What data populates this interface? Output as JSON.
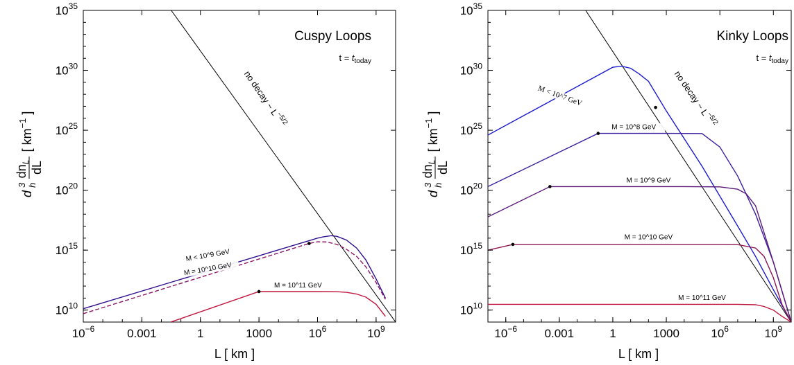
{
  "chart_data": [
    {
      "type": "line",
      "title": "Cuspy Loops",
      "subtitle": "t = t_today",
      "subtitle_parts": {
        "lhs": "t = ",
        "var": "t",
        "sub": "today"
      },
      "xlabel": "L  [ km ]",
      "ylabel": "d_h^3 dn_L/dL  [ km^-1 ]",
      "xscale": "log",
      "yscale": "log",
      "xlim": [
        1e-06,
        10000000000.0
      ],
      "ylim": [
        1000000000.0,
        1e+35
      ],
      "xticks": [
        {
          "v": 1e-06,
          "base": "10",
          "exp": "−6"
        },
        {
          "v": 0.001,
          "base": "0.001",
          "exp": ""
        },
        {
          "v": 1,
          "base": "1",
          "exp": ""
        },
        {
          "v": 1000,
          "base": "1000",
          "exp": ""
        },
        {
          "v": 1000000.0,
          "base": "10",
          "exp": "6"
        },
        {
          "v": 1000000000.0,
          "base": "10",
          "exp": "9"
        }
      ],
      "yticks": [
        {
          "v": 10000000000.0,
          "exp": "10"
        },
        {
          "v": 1000000000000000.0,
          "exp": "15"
        },
        {
          "v": 1e+20,
          "exp": "20"
        },
        {
          "v": 1e+25,
          "exp": "25"
        },
        {
          "v": 1e+30,
          "exp": "30"
        },
        {
          "v": 1e+35,
          "exp": "35"
        }
      ],
      "series": [
        {
          "name": "no decay ~ L^-5/2",
          "color": "#000000",
          "x": [
            0.032,
            10000000000.0
          ],
          "y": [
            1e+35,
            1000000000.0
          ]
        },
        {
          "name": "M < 10^9 GeV",
          "color": "#2f0f8f",
          "x": [
            1e-06,
            1000000.0,
            2000000.0,
            5000000.0,
            10000000.0,
            30000000.0,
            100000000.0,
            300000000.0,
            1000000000.0,
            3000000000.0
          ],
          "y": [
            13000000000.0,
            1e+16,
            1.3e+16,
            1.6e+16,
            1.4e+16,
            7000000000000000.0,
            1500000000000000.0,
            150000000000000.0,
            4000000000000.0,
            100000000000.0
          ]
        },
        {
          "name": "M = 10^10 GeV",
          "color": "#8a1465",
          "x": [
            1e-06,
            370000.0,
            1000000.0,
            3000000.0,
            10000000.0,
            30000000.0,
            100000000.0,
            300000000.0,
            1000000000.0,
            3000000000.0
          ],
          "y": [
            5000000000.0,
            3600000000000000.0,
            5000000000000000.0,
            4800000000000000.0,
            3000000000000000.0,
            1200000000000000.0,
            300000000000000.0,
            40000000000000.0,
            2000000000000.0,
            80000000000.0
          ]
        },
        {
          "name": "M = 10^11 GeV",
          "color": "#c0143c",
          "x": [
            0.03,
            1000.0,
            1000000.0,
            10000000.0,
            30000000.0,
            100000000.0,
            300000000.0,
            1000000000.0,
            3000000000.0
          ],
          "y": [
            1000000000.0,
            350000000000.0,
            350000000000.0,
            340000000000.0,
            300000000000.0,
            220000000000.0,
            120000000000.0,
            30000000000.0,
            3000000000.0
          ]
        }
      ],
      "points": [
        {
          "x": 370000.0,
          "y": 3600000000000000.0
        },
        {
          "x": 1000.0,
          "y": 350000000000.0
        }
      ],
      "labels": {
        "no_decay": "no decay ~ L",
        "no_decay_exp": "−5/2",
        "m9": "M < 10^9 GeV",
        "m10": "M = 10^10 GeV",
        "m11": "M = 10^11 GeV"
      }
    },
    {
      "type": "line",
      "title": "Kinky Loops",
      "subtitle": "t = t_today",
      "subtitle_parts": {
        "lhs": "t = ",
        "var": "t",
        "sub": "today"
      },
      "xlabel": "L  [ km ]",
      "ylabel": "d_h^3 dn_L/dL  [ km^-1 ]",
      "xscale": "log",
      "yscale": "log",
      "xlim": [
        1e-07,
        10000000000.0
      ],
      "ylim": [
        1000000000.0,
        1e+35
      ],
      "xticks": [
        {
          "v": 1e-06,
          "base": "10",
          "exp": "−6"
        },
        {
          "v": 0.001,
          "base": "0.001",
          "exp": ""
        },
        {
          "v": 1,
          "base": "1",
          "exp": ""
        },
        {
          "v": 1000,
          "base": "1000",
          "exp": ""
        },
        {
          "v": 1000000.0,
          "base": "10",
          "exp": "6"
        },
        {
          "v": 1000000000.0,
          "base": "10",
          "exp": "9"
        }
      ],
      "yticks": [
        {
          "v": 10000000000.0,
          "exp": "10"
        },
        {
          "v": 1000000000000000.0,
          "exp": "15"
        },
        {
          "v": 1e+20,
          "exp": "20"
        },
        {
          "v": 1e+25,
          "exp": "25"
        },
        {
          "v": 1e+30,
          "exp": "30"
        },
        {
          "v": 1e+35,
          "exp": "35"
        }
      ],
      "series": [
        {
          "name": "no decay ~ L^-5/2",
          "color": "#000000",
          "x": [
            0.03,
            10000000000.0
          ],
          "y": [
            1e+35,
            1000000000.0
          ]
        },
        {
          "name": "M < 10^7 GeV",
          "color": "#1a1ad0",
          "x": [
            1e-07,
            1,
            3,
            10,
            30,
            100,
            1000.0,
            100000.0,
            10000000.0,
            100000000.0,
            1000000000.0,
            10000000000.0
          ],
          "y": [
            4e+24,
            1.8e+30,
            2.2e+30,
            1.5e+30,
            5e+29,
            1.2e+29,
            4e+26,
            1e+22,
            1e+17,
            300000000000000.0,
            500000000000.0,
            1000000000.0
          ]
        },
        {
          "name": "M = 10^8 GeV",
          "color": "#3c1ea0",
          "x": [
            1e-07,
            0.15,
            1000.0,
            100000.0,
            1000000.0,
            10000000.0,
            100000000.0,
            1000000000.0,
            10000000000.0
          ],
          "y": [
            2e+20,
            5.5e+24,
            5.5e+24,
            5.3e+24,
            4e+23,
            1.5e+21,
            1e+18,
            100000000000000.0,
            1000000000.0
          ]
        },
        {
          "name": "M = 10^9 GeV",
          "color": "#5a1a7a",
          "x": [
            1e-07,
            0.0003,
            10000.0,
            1000000.0,
            10000000.0,
            30000000.0,
            100000000.0,
            1000000000.0,
            10000000000.0
          ],
          "y": [
            6e+17,
            2e+20,
            2e+20,
            1.9e+20,
            1.2e+20,
            5e+19,
            5e+18,
            100000000000000.0,
            1000000000.0
          ]
        },
        {
          "name": "M = 10^10 GeV",
          "color": "#8c1450",
          "x": [
            1e-07,
            2.5e-06,
            1000000.0,
            10000000.0,
            100000000.0,
            300000000.0,
            1000000000.0,
            3000000000.0,
            10000000000.0
          ],
          "y": [
            1000000000000000.0,
            3000000000000000.0,
            3000000000000000.0,
            2900000000000000.0,
            1500000000000000.0,
            300000000000000.0,
            5000000000000.0,
            30000000000.0,
            1000000000.0
          ]
        },
        {
          "name": "M = 10^11 GeV",
          "color": "#c0143c",
          "x": [
            1e-07,
            10000000.0,
            100000000.0,
            300000000.0,
            1000000000.0,
            3000000000.0,
            10000000000.0
          ],
          "y": [
            30000000000.0,
            30000000000.0,
            28000000000.0,
            20000000000.0,
            10000000000.0,
            3000000000.0,
            1000000000.0
          ]
        }
      ],
      "points": [
        {
          "x": 0.15,
          "y": 5.5e+24
        },
        {
          "x": 0.0003,
          "y": 2e+20
        },
        {
          "x": 2.5e-06,
          "y": 3000000000000000.0
        },
        {
          "x": 250,
          "y": 8e+26
        }
      ],
      "labels": {
        "no_decay": "no decay ~ L",
        "no_decay_exp": "−5/2",
        "m7": "M < 10^7 GeV",
        "m8": "M = 10^8 GeV",
        "m9": "M = 10^9 GeV",
        "m10": "M = 10^10 GeV",
        "m11": "M = 10^11 GeV"
      }
    }
  ]
}
